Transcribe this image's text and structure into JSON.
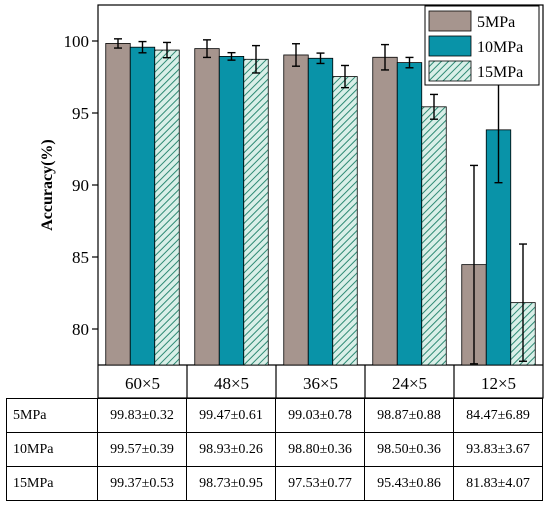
{
  "chart_data": {
    "type": "bar",
    "categories": [
      "60×5",
      "48×5",
      "36×5",
      "24×5",
      "12×5"
    ],
    "ylabel": "Accuracy(%)",
    "xlabel": "",
    "ylim": [
      77.5,
      102.5
    ],
    "yticks": [
      80,
      85,
      90,
      95,
      100
    ],
    "grid": false,
    "legend_position": "top-right",
    "error_bars": true,
    "series": [
      {
        "name": "5MPa",
        "fill": "#a6958e",
        "pattern": "solid",
        "values": [
          99.83,
          99.47,
          99.03,
          98.87,
          84.47
        ],
        "errors": [
          0.32,
          0.61,
          0.78,
          0.88,
          6.89
        ]
      },
      {
        "name": "10MPa",
        "fill": "#0993a8",
        "pattern": "solid",
        "values": [
          99.57,
          98.93,
          98.8,
          98.5,
          93.83
        ],
        "errors": [
          0.39,
          0.26,
          0.36,
          0.36,
          3.67
        ]
      },
      {
        "name": "15MPa",
        "fill": "#cfe7df",
        "stroke": "#2e8a74",
        "pattern": "diagonal-hatch",
        "values": [
          99.37,
          98.73,
          97.53,
          95.43,
          81.83
        ],
        "errors": [
          0.53,
          0.95,
          0.77,
          0.86,
          4.07
        ]
      }
    ]
  },
  "table": {
    "rows": [
      {
        "label": "5MPa",
        "cells": [
          "99.83±0.32",
          "99.47±0.61",
          "99.03±0.78",
          "98.87±0.88",
          "84.47±6.89"
        ]
      },
      {
        "label": "10MPa",
        "cells": [
          "99.57±0.39",
          "98.93±0.26",
          "98.80±0.36",
          "98.50±0.36",
          "93.83±3.67"
        ]
      },
      {
        "label": "15MPa",
        "cells": [
          "99.37±0.53",
          "98.73±0.95",
          "97.53±0.77",
          "95.43±0.86",
          "81.83±4.07"
        ]
      }
    ]
  }
}
